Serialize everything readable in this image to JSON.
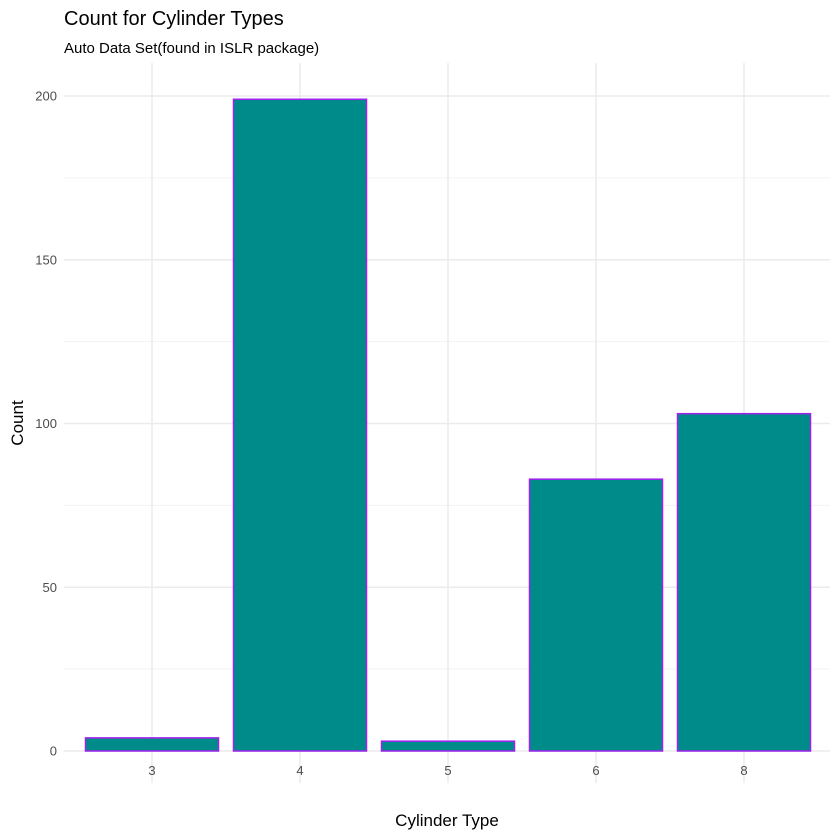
{
  "chart_data": {
    "type": "bar",
    "title": "Count for Cylinder Types",
    "subtitle": "Auto Data Set(found in ISLR package)",
    "xlabel": "Cylinder Type",
    "ylabel": "Count",
    "categories": [
      "3",
      "4",
      "5",
      "6",
      "8"
    ],
    "values": [
      4,
      199,
      3,
      83,
      103
    ],
    "ylim": [
      0,
      210
    ],
    "yticks": [
      0,
      50,
      100,
      150,
      200
    ],
    "grid": true,
    "legend": "none",
    "colors": {
      "bar_fill": "#008b8b",
      "bar_outline": "#a020f0",
      "grid_major": "#ebebeb",
      "grid_minor": "#f3f3f3"
    }
  }
}
